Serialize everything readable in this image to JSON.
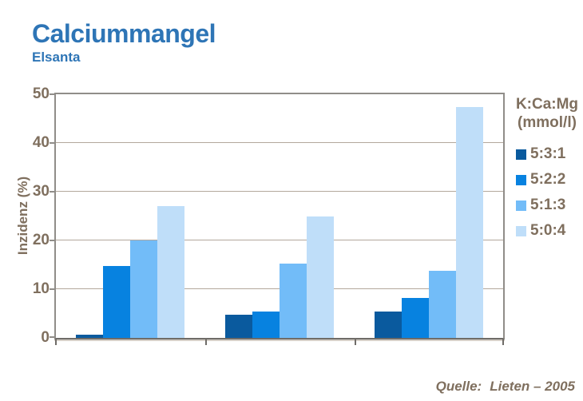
{
  "header": {
    "title": "Calciummangel",
    "subtitle": "Elsanta"
  },
  "chart_data": {
    "type": "bar",
    "title": "",
    "xlabel": "",
    "ylabel": "Inzidenz (%)",
    "ylim": [
      0,
      50
    ],
    "yticks": [
      0,
      10,
      20,
      30,
      40,
      50
    ],
    "grid": true,
    "legend_position": "right",
    "legend_title_line1": "K:Ca:Mg",
    "legend_title_line2": "(mmol/l)",
    "categories": [
      "",
      "",
      ""
    ],
    "series": [
      {
        "name": "5:3:1",
        "color": "#0A5A9E",
        "values": [
          0.6,
          4.8,
          5.4
        ]
      },
      {
        "name": "5:2:2",
        "color": "#0782E0",
        "values": [
          14.8,
          5.4,
          8.2
        ]
      },
      {
        "name": "5:1:3",
        "color": "#72BCF8",
        "values": [
          20.0,
          15.3,
          13.8
        ]
      },
      {
        "name": "5:0:4",
        "color": "#BFDEF9",
        "values": [
          27.0,
          25.0,
          47.3
        ]
      }
    ]
  },
  "footer": {
    "source_label": "Quelle:",
    "source_value": "Lieten – 2005"
  },
  "colors": {
    "title_blue": "#2E75B6",
    "axis_text": "#7F6F5E",
    "frame": "#908D89",
    "gridline": "#B3A89C",
    "background": "#FFFFFF"
  }
}
